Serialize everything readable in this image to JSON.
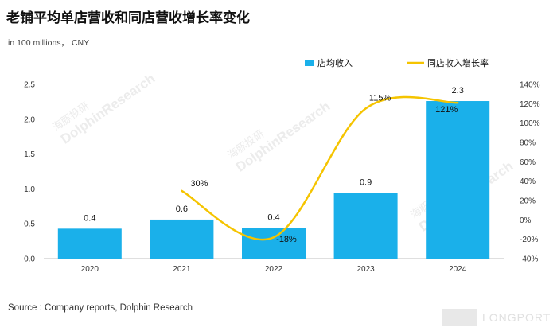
{
  "chart_data": {
    "type": "bar",
    "title": "老铺平均单店营收和同店营收增长率变化",
    "unit_label": "in 100 millions， CNY",
    "source": "Source : Company reports, Dolphin Research",
    "categories": [
      "2020",
      "2021",
      "2022",
      "2023",
      "2024"
    ],
    "series": [
      {
        "name": "店均收入",
        "type": "bar",
        "axis": "left",
        "color": "#1ab0ea",
        "values": [
          0.43,
          0.56,
          0.44,
          0.94,
          2.26
        ],
        "labels": [
          "0.4",
          "0.6",
          "0.4",
          "0.9",
          "2.3"
        ]
      },
      {
        "name": "同店收入增长率",
        "type": "line",
        "axis": "right",
        "color": "#f5c400",
        "values": [
          null,
          30,
          -18,
          115,
          121
        ],
        "labels": [
          "",
          "30%",
          "-18%",
          "115%",
          "121%"
        ]
      }
    ],
    "y_left": {
      "lim": [
        0,
        2.5
      ],
      "ticks": [
        0,
        0.5,
        1.0,
        1.5,
        2.0,
        2.5
      ],
      "tick_labels": [
        "0.0",
        "0.5",
        "1.0",
        "1.5",
        "2.0",
        "2.5"
      ]
    },
    "y_right": {
      "lim": [
        -40,
        140
      ],
      "ticks": [
        -40,
        -20,
        0,
        20,
        40,
        60,
        80,
        100,
        120,
        140
      ],
      "tick_labels": [
        "-40%",
        "-20%",
        "0%",
        "20%",
        "40%",
        "60%",
        "80%",
        "100%",
        "120%",
        "140%"
      ]
    },
    "legend_position": "top-right"
  },
  "watermark": {
    "cn": "海豚投研",
    "en": "DolphinResearch"
  },
  "brand": {
    "name": "LONGPORT"
  }
}
